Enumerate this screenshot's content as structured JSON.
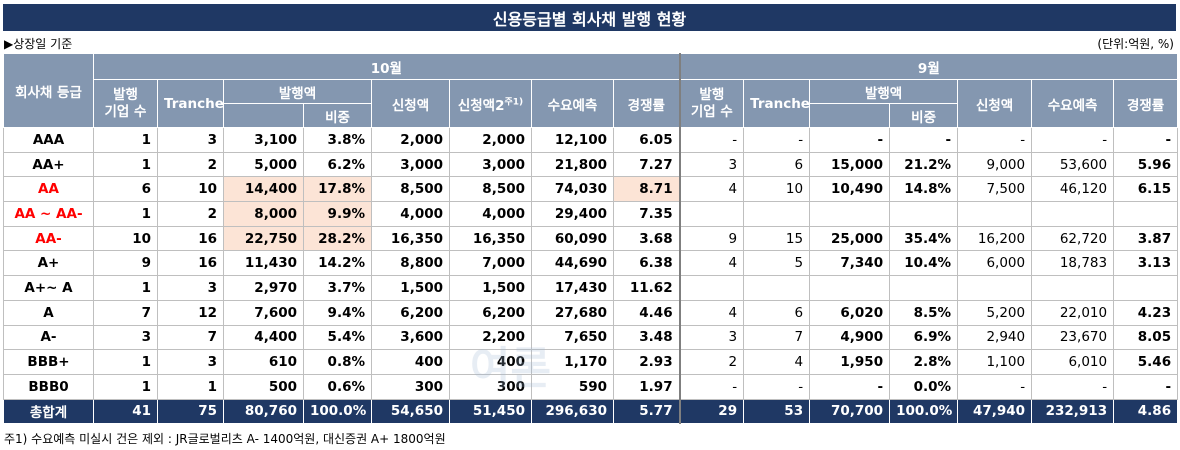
{
  "title": "신용등급별 회사채 발행 현황",
  "basis": "▶상장일 기준",
  "unit": "(단위:억원, %)",
  "headers": {
    "grade": "회사채 등급",
    "oct": "10월",
    "sep": "9월",
    "issuers": "발행\n기업 수",
    "tranche": "Tranche",
    "amount": "발행액",
    "share": "비중",
    "subscription": "신청액",
    "subscription2": "신청액2",
    "note_mark": "주1)",
    "demand": "수요예측",
    "ratio": "경쟁률"
  },
  "rows": [
    {
      "grade": "AAA",
      "red": false,
      "oct": [
        "1",
        "3",
        "3,100",
        "3.8%",
        "2,000",
        "2,000",
        "12,100",
        "6.05"
      ],
      "sep": [
        "-",
        "-",
        "-",
        "-",
        "-",
        "-",
        "-"
      ]
    },
    {
      "grade": "AA+",
      "red": false,
      "oct": [
        "1",
        "2",
        "5,000",
        "6.2%",
        "3,000",
        "3,000",
        "21,800",
        "7.27"
      ],
      "sep": [
        "3",
        "6",
        "15,000",
        "21.2%",
        "9,000",
        "53,600",
        "5.96"
      ]
    },
    {
      "grade": "AA",
      "red": true,
      "oct": [
        "6",
        "10",
        "14,400",
        "17.8%",
        "8,500",
        "8,500",
        "74,030",
        "8.71"
      ],
      "sep": [
        "4",
        "10",
        "10,490",
        "14.8%",
        "7,500",
        "46,120",
        "6.15"
      ]
    },
    {
      "grade": "AA ~ AA-",
      "red": true,
      "oct": [
        "1",
        "2",
        "8,000",
        "9.9%",
        "4,000",
        "4,000",
        "29,400",
        "7.35"
      ],
      "sep": [
        "",
        "",
        "",
        "",
        "",
        "",
        ""
      ]
    },
    {
      "grade": "AA-",
      "red": true,
      "oct": [
        "10",
        "16",
        "22,750",
        "28.2%",
        "16,350",
        "16,350",
        "60,090",
        "3.68"
      ],
      "sep": [
        "9",
        "15",
        "25,000",
        "35.4%",
        "16,200",
        "62,720",
        "3.87"
      ]
    },
    {
      "grade": "A+",
      "red": false,
      "oct": [
        "9",
        "16",
        "11,430",
        "14.2%",
        "8,800",
        "7,000",
        "44,690",
        "6.38"
      ],
      "sep": [
        "4",
        "5",
        "7,340",
        "10.4%",
        "6,000",
        "18,783",
        "3.13"
      ]
    },
    {
      "grade": "A+~ A",
      "red": false,
      "oct": [
        "1",
        "3",
        "2,970",
        "3.7%",
        "1,500",
        "1,500",
        "17,430",
        "11.62"
      ],
      "sep": [
        "",
        "",
        "",
        "",
        "",
        "",
        ""
      ]
    },
    {
      "grade": "A",
      "red": false,
      "oct": [
        "7",
        "12",
        "7,600",
        "9.4%",
        "6,200",
        "6,200",
        "27,680",
        "4.46"
      ],
      "sep": [
        "4",
        "6",
        "6,020",
        "8.5%",
        "5,200",
        "22,010",
        "4.23"
      ]
    },
    {
      "grade": "A-",
      "red": false,
      "oct": [
        "3",
        "7",
        "4,400",
        "5.4%",
        "3,600",
        "2,200",
        "7,650",
        "3.48"
      ],
      "sep": [
        "3",
        "7",
        "4,900",
        "6.9%",
        "2,940",
        "23,670",
        "8.05"
      ]
    },
    {
      "grade": "BBB+",
      "red": false,
      "oct": [
        "1",
        "3",
        "610",
        "0.8%",
        "400",
        "400",
        "1,170",
        "2.93"
      ],
      "sep": [
        "2",
        "4",
        "1,950",
        "2.8%",
        "1,100",
        "6,010",
        "5.46"
      ]
    },
    {
      "grade": "BBB0",
      "red": false,
      "oct": [
        "1",
        "1",
        "500",
        "0.6%",
        "300",
        "300",
        "590",
        "1.97"
      ],
      "sep": [
        "-",
        "-",
        "-",
        "0.0%",
        "-",
        "-",
        "-"
      ]
    }
  ],
  "total": {
    "label": "총합계",
    "oct": [
      "41",
      "75",
      "80,760",
      "100.0%",
      "54,650",
      "51,450",
      "296,630",
      "5.77"
    ],
    "sep": [
      "29",
      "53",
      "70,700",
      "100.0%",
      "47,940",
      "232,913",
      "4.86"
    ]
  },
  "footnote": "주1) 수요예측 미실시 건은 제외 : JR글로벌리츠 A- 1400억원, 대신증권 A+ 1800억원"
}
